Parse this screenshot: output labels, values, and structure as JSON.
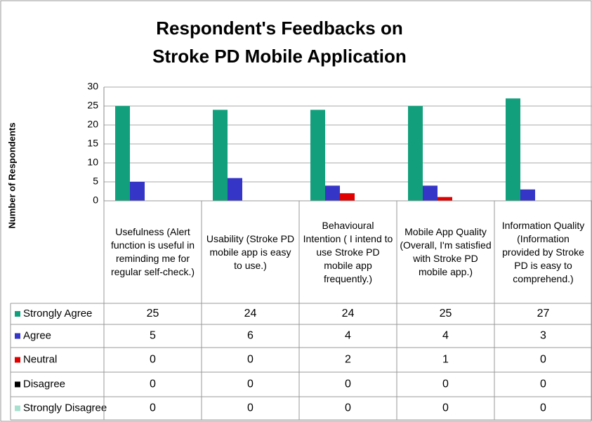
{
  "chart_data": {
    "type": "bar",
    "title": "Respondent's Feedbacks on",
    "subtitle": "Stroke PD Mobile Application",
    "y_label": "Number of Respondents",
    "categories": [
      "Usefulness (Alert function is useful in reminding me for regular self-check.)",
      "Usability (Stroke PD mobile app is easy to use.)",
      "Behavioural Intention ( I intend to use Stroke PD mobile app frequently.)",
      "Mobile App Quality (Overall, I'm satisfied with Stroke PD mobile app.)",
      "Information Quality (Information provided by Stroke PD is easy to comprehend.)"
    ],
    "series": [
      {
        "name": "Strongly Agree",
        "color": "#12a07c",
        "values": [
          25,
          24,
          24,
          25,
          27
        ]
      },
      {
        "name": "Agree",
        "color": "#3535c8",
        "values": [
          5,
          6,
          4,
          4,
          3
        ]
      },
      {
        "name": "Neutral",
        "color": "#e00000",
        "values": [
          0,
          0,
          2,
          1,
          0
        ]
      },
      {
        "name": "Disagree",
        "color": "#000000",
        "values": [
          0,
          0,
          0,
          0,
          0
        ]
      },
      {
        "name": "Strongly Disagree",
        "color": "#a8e0d0",
        "values": [
          0,
          0,
          0,
          0,
          0
        ]
      }
    ],
    "ylim": [
      0,
      30
    ],
    "yticks": [
      0,
      5,
      10,
      15,
      20,
      25,
      30
    ],
    "grid": true
  }
}
